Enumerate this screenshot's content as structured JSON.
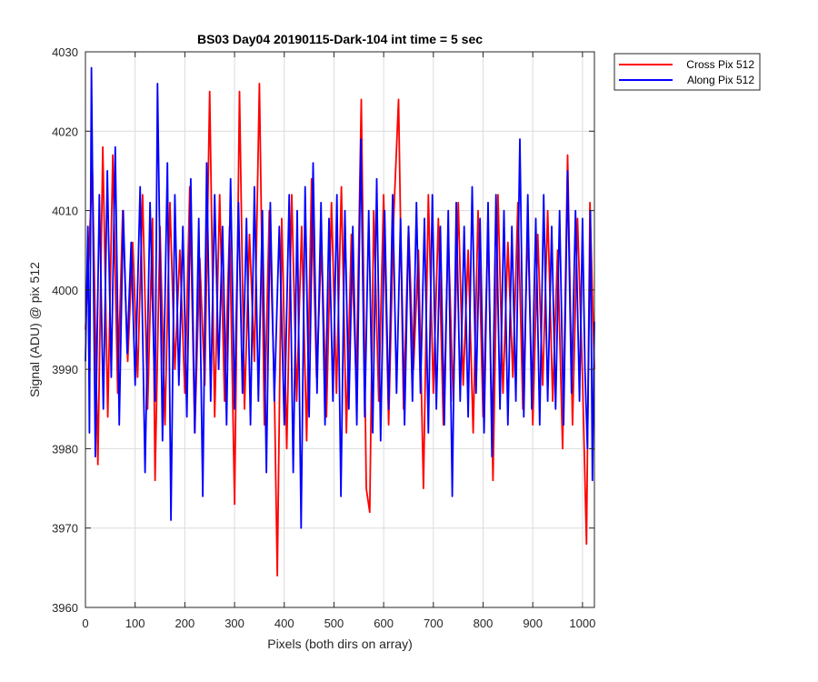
{
  "chart_data": {
    "type": "line",
    "title": "BS03 Day04 20190115-Dark-104 int time = 5 sec",
    "xlabel": "Pixels (both dirs on array)",
    "ylabel": "Signal (ADU) @ pix 512",
    "xlim": [
      0,
      1024
    ],
    "ylim": [
      3960,
      4030
    ],
    "xticks": [
      0,
      100,
      200,
      300,
      400,
      500,
      600,
      700,
      800,
      900,
      1000
    ],
    "yticks": [
      3960,
      3970,
      3980,
      3990,
      4000,
      4010,
      4020,
      4030
    ],
    "grid": true,
    "legend_position": "outside-top-right",
    "series": [
      {
        "name": "Cross Pix 512",
        "color": "#ff0000",
        "x": [
          0,
          14,
          25,
          35,
          45,
          55,
          65,
          75,
          85,
          95,
          105,
          115,
          125,
          135,
          140,
          150,
          160,
          170,
          180,
          190,
          200,
          210,
          220,
          230,
          240,
          250,
          260,
          270,
          280,
          290,
          300,
          310,
          320,
          330,
          340,
          350,
          360,
          370,
          380,
          386,
          395,
          405,
          415,
          425,
          435,
          445,
          455,
          465,
          475,
          485,
          495,
          505,
          515,
          525,
          535,
          545,
          555,
          565,
          572,
          580,
          590,
          600,
          610,
          620,
          630,
          640,
          650,
          660,
          670,
          680,
          690,
          700,
          710,
          720,
          730,
          740,
          750,
          760,
          770,
          780,
          790,
          800,
          810,
          820,
          830,
          840,
          850,
          860,
          870,
          880,
          890,
          900,
          910,
          920,
          930,
          940,
          950,
          960,
          970,
          980,
          990,
          1000,
          1008,
          1015,
          1024
        ],
        "values": [
          3995,
          4015,
          3978,
          4018,
          3984,
          4017,
          3987,
          4010,
          3991,
          4006,
          3989,
          4012,
          3985,
          4009,
          3976,
          4008,
          3983,
          4011,
          3990,
          4005,
          3987,
          4013,
          3982,
          4004,
          3988,
          4025,
          3984,
          4012,
          3986,
          4008,
          3973,
          4025,
          3985,
          4007,
          3991,
          4026,
          3983,
          4010,
          3988,
          3964,
          4009,
          3980,
          4012,
          3986,
          4008,
          3981,
          4014,
          3989,
          4006,
          3984,
          4011,
          3987,
          4013,
          3982,
          4007,
          3988,
          4024,
          3975,
          3972,
          4010,
          3986,
          4012,
          3983,
          4009,
          4024,
          3985,
          4008,
          3990,
          4005,
          3975,
          4012,
          3987,
          4009,
          3983,
          4007,
          3986,
          4011,
          3988,
          4005,
          3982,
          4010,
          3984,
          4008,
          3976,
          4012,
          3987,
          4006,
          3989,
          4011,
          3985,
          4008,
          3983,
          4007,
          3988,
          4010,
          3986,
          4005,
          3980,
          4017,
          3983,
          4009,
          3989,
          3968,
          4011,
          3990
        ]
      },
      {
        "name": "Along Pix 512",
        "color": "#0000ff",
        "x": [
          0,
          5,
          8,
          12,
          20,
          28,
          36,
          44,
          52,
          60,
          68,
          76,
          84,
          92,
          100,
          110,
          120,
          130,
          140,
          145,
          155,
          165,
          172,
          180,
          188,
          196,
          204,
          212,
          220,
          228,
          236,
          244,
          252,
          260,
          268,
          276,
          284,
          292,
          300,
          308,
          316,
          324,
          332,
          340,
          348,
          356,
          364,
          372,
          380,
          390,
          400,
          410,
          418,
          426,
          434,
          442,
          450,
          458,
          466,
          474,
          482,
          490,
          498,
          506,
          514,
          522,
          530,
          538,
          546,
          554,
          562,
          570,
          578,
          586,
          594,
          602,
          610,
          618,
          626,
          634,
          642,
          650,
          658,
          666,
          674,
          682,
          690,
          698,
          706,
          714,
          722,
          730,
          738,
          746,
          754,
          762,
          770,
          778,
          786,
          794,
          802,
          810,
          818,
          826,
          834,
          842,
          850,
          858,
          866,
          874,
          882,
          890,
          898,
          906,
          914,
          922,
          930,
          938,
          946,
          954,
          962,
          970,
          978,
          986,
          994,
          1000,
          1005,
          1010,
          1016,
          1020,
          1024
        ],
        "values": [
          3991,
          4008,
          3982,
          4028,
          3979,
          4012,
          3985,
          4015,
          3989,
          4018,
          3983,
          4010,
          3992,
          4006,
          3988,
          4013,
          3977,
          4011,
          3986,
          4026,
          3981,
          4016,
          3971,
          4012,
          3988,
          4008,
          3984,
          4014,
          3982,
          4009,
          3974,
          4016,
          3986,
          4012,
          3990,
          4008,
          3983,
          4014,
          3985,
          4011,
          3987,
          4009,
          3983,
          4013,
          3986,
          4010,
          3977,
          4011,
          3986,
          4008,
          3983,
          4012,
          3977,
          4010,
          3970,
          4013,
          3984,
          4016,
          3987,
          4011,
          3983,
          4009,
          3986,
          4012,
          3974,
          4010,
          3985,
          4008,
          3983,
          4019,
          3984,
          4010,
          3982,
          4014,
          3981,
          4010,
          3985,
          4012,
          3987,
          4009,
          3983,
          4008,
          3986,
          4011,
          3987,
          4009,
          3982,
          4012,
          3985,
          4008,
          3983,
          4010,
          3974,
          4011,
          3986,
          4008,
          3984,
          4013,
          3987,
          4009,
          3982,
          4011,
          3979,
          4012,
          3985,
          4010,
          3983,
          4008,
          3986,
          4019,
          3984,
          4012,
          3985,
          4009,
          3983,
          4012,
          3986,
          4008,
          3985,
          4010,
          3983,
          4015,
          3987,
          4010,
          3986,
          4009,
          3990,
          3980,
          4010,
          3976,
          3996
        ]
      }
    ]
  }
}
